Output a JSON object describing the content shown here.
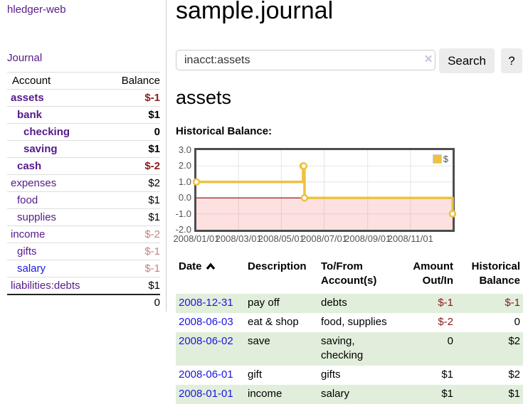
{
  "app": {
    "title": "hledger-web"
  },
  "colors": {
    "link_purple": "#551a8b",
    "link_blue": "#1b16e0",
    "negative_strong": "#8c1a1a",
    "negative_soft": "#c5827f",
    "row_green": "#e1eedb",
    "chart_gold": "#edc240",
    "negative_region": "#f8d7d7",
    "zero_line": "#8b0000"
  },
  "sidebar": {
    "journal_link": "Journal",
    "table": {
      "headers": {
        "account": "Account",
        "balance": "Balance"
      },
      "rows": [
        {
          "account": "assets",
          "depth": 0,
          "bold": true,
          "link_color": "purple",
          "balance": "$-1",
          "balance_style": "neg-strong"
        },
        {
          "account": "bank",
          "depth": 1,
          "bold": true,
          "link_color": "purple",
          "balance": "$1",
          "balance_style": "pos"
        },
        {
          "account": "checking",
          "depth": 2,
          "bold": true,
          "link_color": "purple",
          "balance": "0",
          "balance_style": "pos"
        },
        {
          "account": "saving",
          "depth": 2,
          "bold": true,
          "link_color": "purple",
          "balance": "$1",
          "balance_style": "pos"
        },
        {
          "account": "cash",
          "depth": 1,
          "bold": true,
          "link_color": "purple",
          "balance": "$-2",
          "balance_style": "neg-strong"
        },
        {
          "account": "expenses",
          "depth": 0,
          "bold": false,
          "link_color": "purple",
          "balance": "$2",
          "balance_style": "pos"
        },
        {
          "account": "food",
          "depth": 1,
          "bold": false,
          "link_color": "purple",
          "balance": "$1",
          "balance_style": "pos"
        },
        {
          "account": "supplies",
          "depth": 1,
          "bold": false,
          "link_color": "purple",
          "balance": "$1",
          "balance_style": "pos"
        },
        {
          "account": "income",
          "depth": 0,
          "bold": false,
          "link_color": "purple",
          "balance": "$-2",
          "balance_style": "neg-soft"
        },
        {
          "account": "gifts",
          "depth": 1,
          "bold": false,
          "link_color": "purple",
          "balance": "$-1",
          "balance_style": "neg-soft"
        },
        {
          "account": "salary",
          "depth": 1,
          "bold": false,
          "link_color": "blue",
          "balance": "$-1",
          "balance_style": "neg-soft"
        },
        {
          "account": "liabilities:debts",
          "depth": 0,
          "bold": false,
          "link_color": "purple",
          "balance": "$1",
          "balance_style": "pos"
        }
      ],
      "total": "0"
    }
  },
  "header": {
    "title": "sample.journal"
  },
  "search": {
    "value": "inacct:assets",
    "clear_icon": "×",
    "button": "Search",
    "help_button": "?"
  },
  "account_page": {
    "heading": "assets",
    "chart_label": "Historical Balance:"
  },
  "chart_data": {
    "type": "line",
    "interpolation": "step",
    "title": "Historical Balance:",
    "grid": true,
    "legend_position": "top-right",
    "x_range": [
      "2008-01-01",
      "2008-12-31"
    ],
    "ylim": [
      -2,
      3
    ],
    "x_ticks": [
      {
        "label": "2008/01/01",
        "date": "2008-01-01"
      },
      {
        "label": "2008/03/01",
        "date": "2008-03-01"
      },
      {
        "label": "2008/05/01",
        "date": "2008-05-01"
      },
      {
        "label": "2008/07/01",
        "date": "2008-07-01"
      },
      {
        "label": "2008/09/01",
        "date": "2008-09-01"
      },
      {
        "label": "2008/11/01",
        "date": "2008-11-01"
      }
    ],
    "y_ticks": [
      {
        "label": "3.0",
        "value": 3
      },
      {
        "label": "2.0",
        "value": 2
      },
      {
        "label": "1.0",
        "value": 1
      },
      {
        "label": "0.0",
        "value": 0
      },
      {
        "label": "-1.0",
        "value": -1
      },
      {
        "label": "-2.0",
        "value": -2
      }
    ],
    "series": [
      {
        "name": "$",
        "color": "#edc240",
        "points": [
          [
            "2008-01-01",
            1
          ],
          [
            "2008-06-01",
            2
          ],
          [
            "2008-06-02",
            2
          ],
          [
            "2008-06-03",
            0
          ],
          [
            "2008-12-31",
            -1
          ]
        ]
      }
    ]
  },
  "register": {
    "headers": [
      "Date",
      "Description",
      "To/From\nAccount(s)",
      "Amount\nOut/In",
      "Historical\nBalance"
    ],
    "sort": {
      "column": "Date",
      "direction": "ascending"
    },
    "rows": [
      {
        "date": "2008-12-31",
        "description": "pay off",
        "accounts": "debts",
        "amount": "$-1",
        "amount_neg": true,
        "balance": "$-1",
        "balance_neg": true
      },
      {
        "date": "2008-06-03",
        "description": "eat & shop",
        "accounts": "food, supplies",
        "amount": "$-2",
        "amount_neg": true,
        "balance": "0",
        "balance_neg": false
      },
      {
        "date": "2008-06-02",
        "description": "save",
        "accounts": "saving, checking",
        "amount": "0",
        "amount_neg": false,
        "balance": "$2",
        "balance_neg": false
      },
      {
        "date": "2008-06-01",
        "description": "gift",
        "accounts": "gifts",
        "amount": "$1",
        "amount_neg": false,
        "balance": "$2",
        "balance_neg": false
      },
      {
        "date": "2008-01-01",
        "description": "income",
        "accounts": "salary",
        "amount": "$1",
        "amount_neg": false,
        "balance": "$1",
        "balance_neg": false
      }
    ]
  }
}
